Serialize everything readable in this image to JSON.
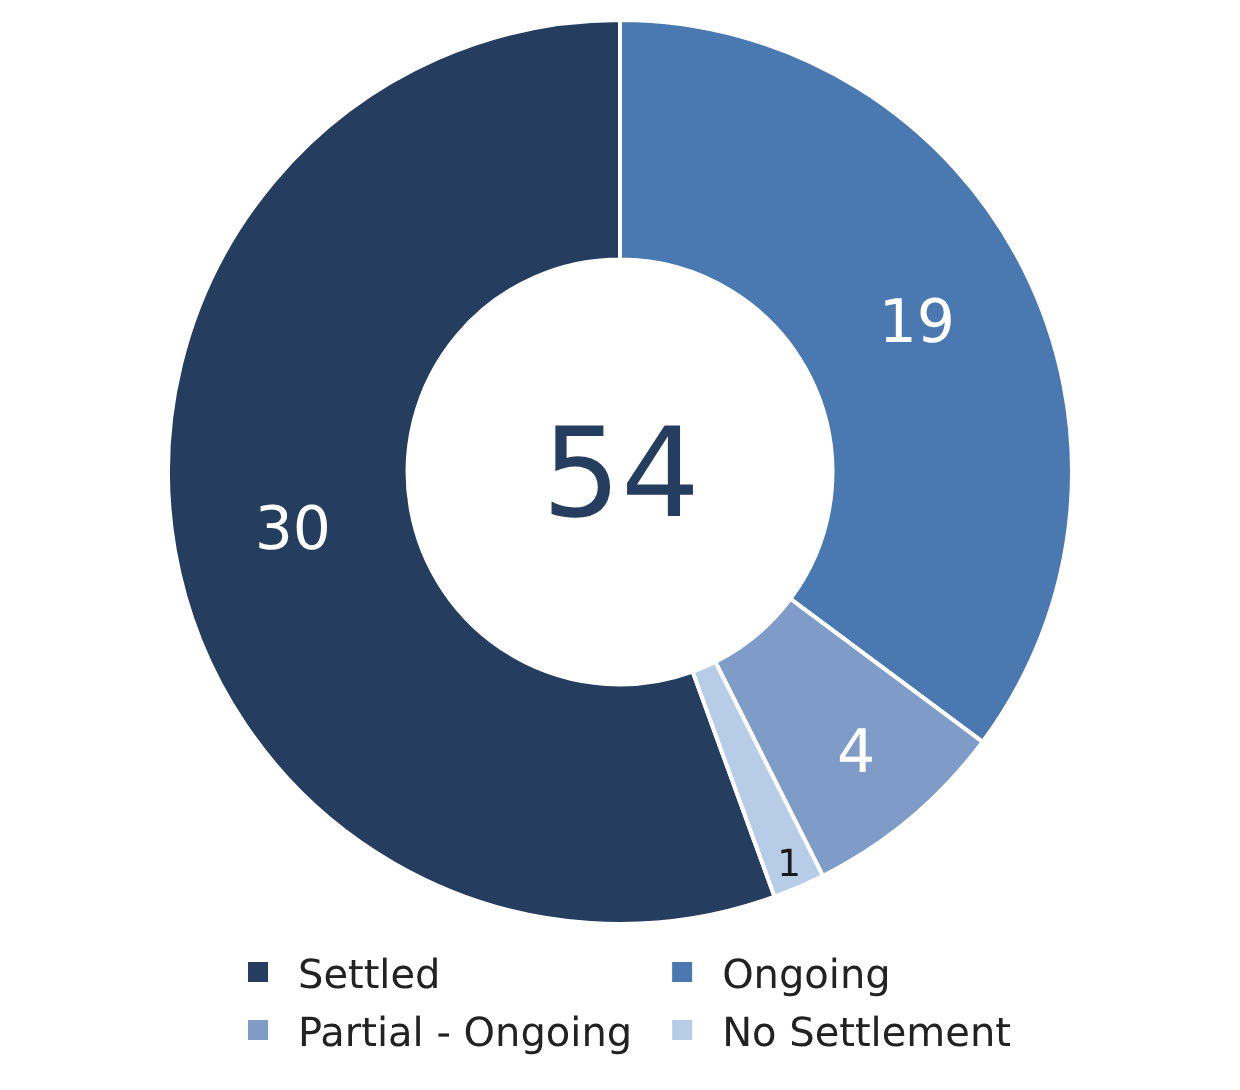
{
  "chart_data": {
    "type": "donut",
    "categories": [
      "Settled",
      "Ongoing",
      "Partial - Ongoing",
      "No Settlement"
    ],
    "values": [
      30,
      19,
      4,
      1
    ],
    "colors": [
      "#253d5e",
      "#4a78b0",
      "#7f9bc8",
      "#b7cce6"
    ],
    "data_labels": true,
    "legend": "bottom",
    "annotations": [
      "54"
    ]
  }
}
